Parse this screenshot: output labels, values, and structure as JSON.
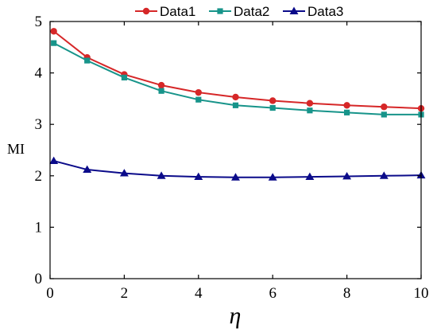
{
  "chart_data": {
    "type": "line",
    "title": "",
    "xlabel": "η",
    "ylabel": "MI",
    "xlim": [
      0,
      10
    ],
    "ylim": [
      0,
      5
    ],
    "xticks": [
      0,
      2,
      4,
      6,
      8,
      10
    ],
    "yticks": [
      0,
      1,
      2,
      3,
      4,
      5
    ],
    "grid": false,
    "legend_position": "top",
    "x": [
      0.1,
      1,
      2,
      3,
      4,
      5,
      6,
      7,
      8,
      9,
      10
    ],
    "series": [
      {
        "name": "Data1",
        "color": "#d62728",
        "marker": "circle",
        "values": [
          4.81,
          4.3,
          3.97,
          3.76,
          3.62,
          3.53,
          3.46,
          3.41,
          3.37,
          3.34,
          3.31
        ]
      },
      {
        "name": "Data2",
        "color": "#17948a",
        "marker": "square",
        "values": [
          4.58,
          4.24,
          3.91,
          3.65,
          3.48,
          3.37,
          3.32,
          3.27,
          3.23,
          3.19,
          3.19
        ]
      },
      {
        "name": "Data3",
        "color": "#0b0b8a",
        "marker": "triangle",
        "values": [
          2.29,
          2.12,
          2.05,
          2.0,
          1.98,
          1.97,
          1.97,
          1.98,
          1.99,
          2.0,
          2.01
        ]
      }
    ]
  }
}
